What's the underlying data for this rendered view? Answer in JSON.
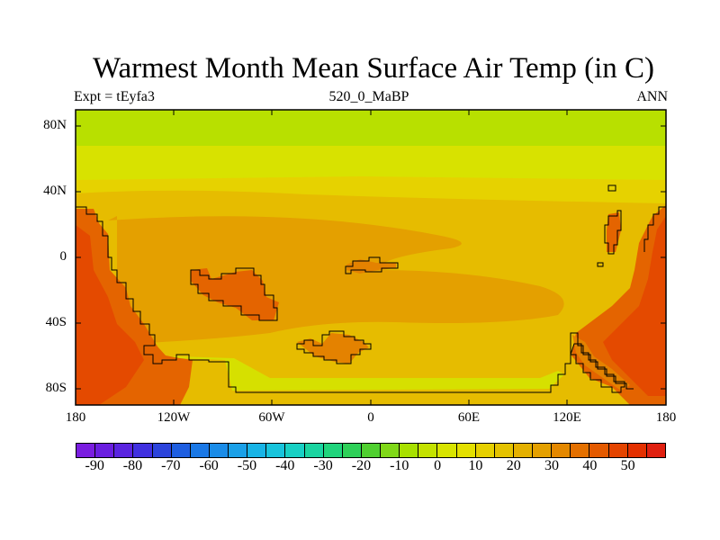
{
  "title": "Warmest Month Mean Surface Air Temp (in C)",
  "subtitle_left": "Expt = tEyfa3",
  "subtitle_center": "520_0_MaBP",
  "subtitle_right": "ANN",
  "lat_labels": [
    "80N",
    "40N",
    "0",
    "40S",
    "80S"
  ],
  "lon_labels": [
    "180",
    "120W",
    "60W",
    "0",
    "60E",
    "120E",
    "180"
  ],
  "colorbar_labels": [
    "-90",
    "-80",
    "-70",
    "-60",
    "-50",
    "-40",
    "-30",
    "-20",
    "-10",
    "0",
    "10",
    "20",
    "30",
    "40",
    "50"
  ],
  "colorbar_colors": [
    "#7a1de0",
    "#6a1ee0",
    "#5a24e0",
    "#4030e0",
    "#2c44dc",
    "#1e5ee0",
    "#1a78e6",
    "#1a8ce8",
    "#1aa0e8",
    "#18b4e6",
    "#18c4dc",
    "#18d0c4",
    "#1ad4a0",
    "#20d47c",
    "#2ed058",
    "#50d030",
    "#80d818",
    "#a8e000",
    "#c4e200",
    "#d8e400",
    "#e4e000",
    "#e6d000",
    "#e4c200",
    "#e4b000",
    "#e4a000",
    "#e48800",
    "#e47000",
    "#e45a00",
    "#e44400",
    "#e43000",
    "#e02010"
  ],
  "map_colors": {
    "band_80": "#b8e000",
    "band_60": "#d8e200",
    "band_45": "#e6d200",
    "mid": "#e6bc00",
    "warm": "#e4a000",
    "hot": "#e48200",
    "hotter": "#e46400",
    "hottest": "#e44a00",
    "polar": "#d6e000"
  }
}
